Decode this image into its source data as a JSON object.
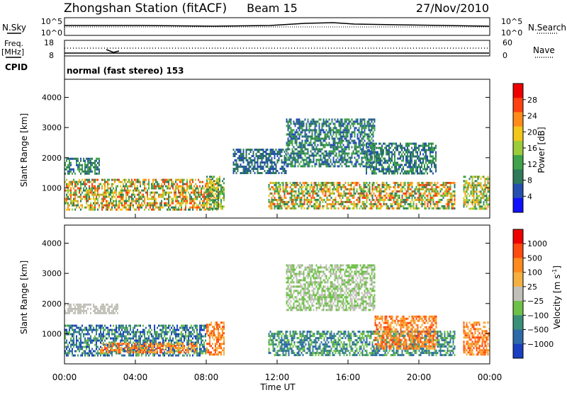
{
  "header": {
    "station": "Zhongshan Station (fitACF)",
    "beam": "Beam 15",
    "date": "27/Nov/2010"
  },
  "status_panels": {
    "nsky_label": "N.Sky",
    "nsearch_label": "N.Search",
    "freq_label_line1": "Freq.",
    "freq_label_line2": "[MHz]",
    "nave_label": "Nave",
    "cpid_label": "CPID",
    "cpid_text": "normal (fast stereo) 153",
    "nsky_ticks": [
      "10^5",
      "10^0"
    ],
    "nsearch_ticks": [
      "10^5",
      "10^0"
    ],
    "freq_ticks": [
      "18",
      "8"
    ],
    "nave_ticks": [
      "60",
      "0"
    ]
  },
  "colors": {
    "power_scale": [
      "#1010ff",
      "#2550b0",
      "#2f7a5a",
      "#3ea34a",
      "#9ccc3a",
      "#f2c61a",
      "#ff8c1a",
      "#ff4010",
      "#ee0000"
    ],
    "velocity_scale": [
      "#1a3fc0",
      "#2f6aa8",
      "#3a8f78",
      "#6fc048",
      "#c0c0b8",
      "#f4b040",
      "#ff8a1e",
      "#ff4a10",
      "#ee0000"
    ]
  },
  "chart_data": [
    {
      "type": "heatmap",
      "name": "power",
      "ylabel": "Slant Range [km]",
      "yticks": [
        "1000",
        "2000",
        "3000",
        "4000"
      ],
      "ylim": [
        0,
        4600
      ],
      "xlim": [
        0,
        24
      ],
      "colorbar_label": "Power [dB]",
      "colorbar_ticks": [
        "28",
        "24",
        "20",
        "16",
        "12",
        "8",
        "4"
      ],
      "colorbar_range": [
        0,
        32
      ],
      "regions": [
        {
          "t0": 0.0,
          "t1": 8.7,
          "r0": 300,
          "r1": 1300,
          "v0": 8,
          "v1": 28
        },
        {
          "t0": 0.0,
          "t1": 2.0,
          "r0": 1500,
          "r1": 2000,
          "v0": 4,
          "v1": 12
        },
        {
          "t0": 8.0,
          "t1": 9.0,
          "r0": 300,
          "r1": 1400,
          "v0": 8,
          "v1": 20
        },
        {
          "t0": 9.5,
          "t1": 12.5,
          "r0": 1500,
          "r1": 2300,
          "v0": 4,
          "v1": 10
        },
        {
          "t0": 12.5,
          "t1": 17.5,
          "r0": 1700,
          "r1": 3300,
          "v0": 4,
          "v1": 12
        },
        {
          "t0": 11.5,
          "t1": 22.0,
          "r0": 300,
          "r1": 1200,
          "v0": 8,
          "v1": 28
        },
        {
          "t0": 17.0,
          "t1": 21.0,
          "r0": 1500,
          "r1": 2500,
          "v0": 4,
          "v1": 12
        },
        {
          "t0": 22.5,
          "t1": 24.0,
          "r0": 300,
          "r1": 1400,
          "v0": 8,
          "v1": 24
        }
      ]
    },
    {
      "type": "heatmap",
      "name": "velocity",
      "ylabel": "Slant Range [km]",
      "xlabel": "Time UT",
      "yticks": [
        "1000",
        "2000",
        "3000",
        "4000"
      ],
      "xticks": [
        "00:00",
        "04:00",
        "08:00",
        "12:00",
        "16:00",
        "20:00",
        "00:00"
      ],
      "ylim": [
        0,
        4600
      ],
      "xlim": [
        0,
        24
      ],
      "colorbar_label": "Velocity [m s",
      "colorbar_label_sup": "-1",
      "colorbar_label_end": "]",
      "colorbar_ticks": [
        "1000",
        "500",
        "100",
        "25",
        "−25",
        "−100",
        "−500",
        "−1000"
      ],
      "regions": [
        {
          "t0": 0.0,
          "t1": 8.0,
          "r0": 300,
          "r1": 1300,
          "v0": 0,
          "v1": 3
        },
        {
          "t0": 2.0,
          "t1": 7.5,
          "r0": 400,
          "r1": 700,
          "v0": 5,
          "v1": 7
        },
        {
          "t0": 8.0,
          "t1": 9.0,
          "r0": 300,
          "r1": 1400,
          "v0": 5,
          "v1": 7
        },
        {
          "t0": 0.0,
          "t1": 3.0,
          "r0": 1700,
          "r1": 2000,
          "v0": 4,
          "v1": 4
        },
        {
          "t0": 12.5,
          "t1": 17.5,
          "r0": 1800,
          "r1": 3300,
          "v0": 3,
          "v1": 4
        },
        {
          "t0": 11.5,
          "t1": 22.0,
          "r0": 300,
          "r1": 1100,
          "v0": 1,
          "v1": 3
        },
        {
          "t0": 17.5,
          "t1": 21.0,
          "r0": 500,
          "r1": 1600,
          "v0": 5,
          "v1": 7
        },
        {
          "t0": 22.5,
          "t1": 24.0,
          "r0": 300,
          "r1": 1400,
          "v0": 5,
          "v1": 7
        }
      ]
    }
  ]
}
